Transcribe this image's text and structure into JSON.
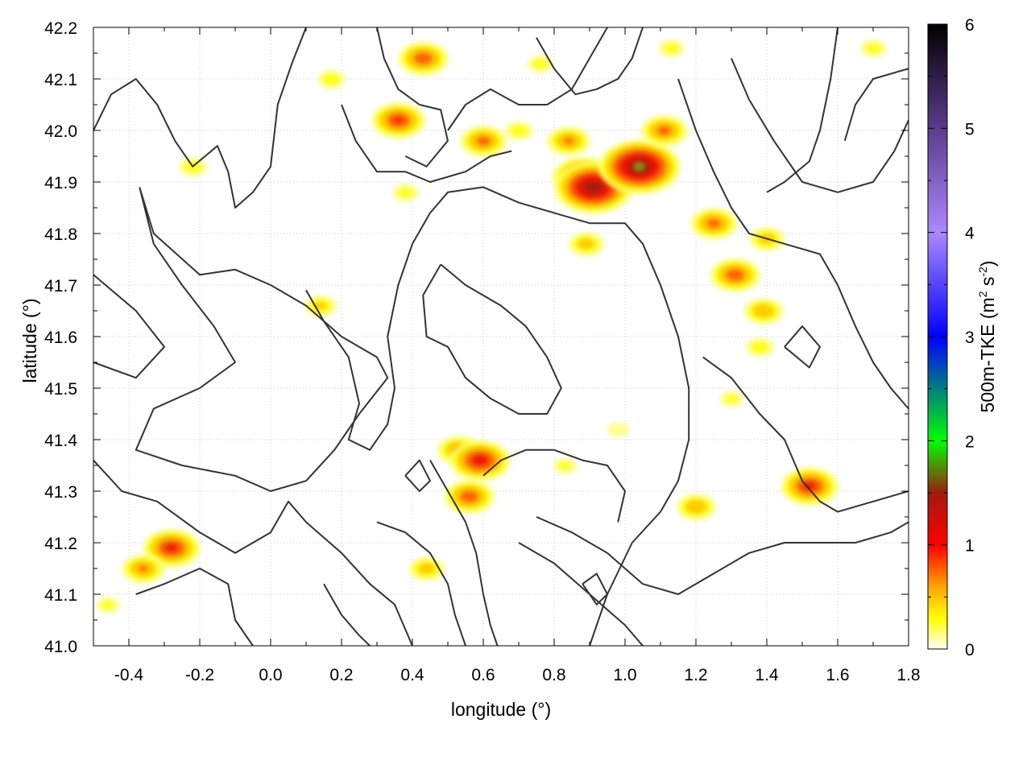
{
  "chart_data": {
    "type": "heatmap",
    "title": "",
    "xlabel": "longitude (°)",
    "ylabel": "latitude (°)",
    "colorbar_label": "500m-TKE (m² s⁻²)",
    "colorbar_label_parts": {
      "base": "500m-TKE (m",
      "sup1": "2",
      "mid": " s",
      "sup2": "-2",
      "end": ")"
    },
    "xlim": [
      -0.5,
      1.8
    ],
    "ylim": [
      41.0,
      42.2
    ],
    "zlim": [
      0,
      6
    ],
    "x_ticks": [
      -0.4,
      -0.2,
      0.0,
      0.2,
      0.4,
      0.6,
      0.8,
      1.0,
      1.2,
      1.4,
      1.6,
      1.8
    ],
    "x_tick_labels": [
      "-0.4",
      "-0.2",
      "0.0",
      "0.2",
      "0.4",
      "0.6",
      "0.8",
      "1.0",
      "1.2",
      "1.4",
      "1.6",
      "1.8"
    ],
    "y_ticks": [
      41.0,
      41.1,
      41.2,
      41.3,
      41.4,
      41.5,
      41.6,
      41.7,
      41.8,
      41.9,
      42.0,
      42.1,
      42.2
    ],
    "y_tick_labels": [
      "41.0",
      "41.1",
      "41.2",
      "41.3",
      "41.4",
      "41.5",
      "41.6",
      "41.7",
      "41.8",
      "41.9",
      "42.0",
      "42.1",
      "42.2"
    ],
    "colorbar_ticks": [
      0,
      1,
      2,
      3,
      4,
      5,
      6
    ],
    "colorbar_tick_labels": [
      "0",
      "1",
      "2",
      "3",
      "4",
      "5",
      "6"
    ],
    "colormap": [
      {
        "v": 0.0,
        "color": "#ffffff"
      },
      {
        "v": 0.3,
        "color": "#ffff00"
      },
      {
        "v": 0.6,
        "color": "#ffa500"
      },
      {
        "v": 1.0,
        "color": "#ff0000"
      },
      {
        "v": 1.5,
        "color": "#a01c0c"
      },
      {
        "v": 2.0,
        "color": "#00ff00"
      },
      {
        "v": 3.0,
        "color": "#0000ff"
      },
      {
        "v": 4.0,
        "color": "#aa88ff"
      },
      {
        "v": 5.0,
        "color": "#5a3c8c"
      },
      {
        "v": 6.0,
        "color": "#000000"
      }
    ],
    "grid": true,
    "contour_color": "#333333",
    "hotspots": [
      {
        "lon": 0.43,
        "lat": 42.14,
        "tke": 1.0
      },
      {
        "lon": 0.36,
        "lat": 42.02,
        "tke": 1.1
      },
      {
        "lon": 0.17,
        "lat": 42.1,
        "tke": 0.4
      },
      {
        "lon": 0.6,
        "lat": 41.98,
        "tke": 0.9
      },
      {
        "lon": 0.84,
        "lat": 41.98,
        "tke": 0.8
      },
      {
        "lon": 0.88,
        "lat": 41.91,
        "tke": 1.3
      },
      {
        "lon": 0.91,
        "lat": 41.89,
        "tke": 1.8
      },
      {
        "lon": 1.04,
        "lat": 41.93,
        "tke": 1.9
      },
      {
        "lon": 1.11,
        "lat": 42.0,
        "tke": 0.9
      },
      {
        "lon": 1.25,
        "lat": 41.82,
        "tke": 0.9
      },
      {
        "lon": 1.31,
        "lat": 41.72,
        "tke": 1.0
      },
      {
        "lon": 1.4,
        "lat": 41.79,
        "tke": 0.6
      },
      {
        "lon": 1.39,
        "lat": 41.65,
        "tke": 0.7
      },
      {
        "lon": 0.89,
        "lat": 41.78,
        "tke": 0.6
      },
      {
        "lon": -0.22,
        "lat": 41.93,
        "tke": 0.4
      },
      {
        "lon": 0.14,
        "lat": 41.66,
        "tke": 0.5
      },
      {
        "lon": 0.53,
        "lat": 41.38,
        "tke": 0.8
      },
      {
        "lon": 0.59,
        "lat": 41.36,
        "tke": 1.3
      },
      {
        "lon": 0.56,
        "lat": 41.29,
        "tke": 1.0
      },
      {
        "lon": 0.44,
        "lat": 41.15,
        "tke": 0.6
      },
      {
        "lon": -0.28,
        "lat": 41.19,
        "tke": 1.2
      },
      {
        "lon": -0.36,
        "lat": 41.15,
        "tke": 0.8
      },
      {
        "lon": 1.52,
        "lat": 41.31,
        "tke": 1.2
      },
      {
        "lon": 1.2,
        "lat": 41.27,
        "tke": 0.7
      },
      {
        "lon": 0.83,
        "lat": 41.35,
        "tke": 0.3
      },
      {
        "lon": 0.98,
        "lat": 41.42,
        "tke": 0.25
      },
      {
        "lon": 0.76,
        "lat": 42.13,
        "tke": 0.35
      },
      {
        "lon": 1.13,
        "lat": 42.16,
        "tke": 0.35
      },
      {
        "lon": 1.38,
        "lat": 41.58,
        "tke": 0.4
      },
      {
        "lon": 1.3,
        "lat": 41.48,
        "tke": 0.3
      },
      {
        "lon": -0.46,
        "lat": 41.08,
        "tke": 0.3
      },
      {
        "lon": 1.7,
        "lat": 42.16,
        "tke": 0.35
      },
      {
        "lon": 0.38,
        "lat": 41.88,
        "tke": 0.35
      },
      {
        "lon": 0.7,
        "lat": 42.0,
        "tke": 0.4
      }
    ],
    "contours": [
      [
        [
          -0.5,
          42.0
        ],
        [
          -0.45,
          42.07
        ],
        [
          -0.38,
          42.1
        ],
        [
          -0.32,
          42.05
        ],
        [
          -0.27,
          41.98
        ],
        [
          -0.22,
          41.93
        ],
        [
          -0.15,
          41.97
        ],
        [
          -0.12,
          41.92
        ],
        [
          -0.1,
          41.85
        ],
        [
          -0.05,
          41.88
        ],
        [
          0.0,
          41.93
        ],
        [
          0.02,
          42.05
        ],
        [
          0.06,
          42.13
        ],
        [
          0.1,
          42.2
        ]
      ],
      [
        [
          -0.37,
          41.89
        ],
        [
          -0.33,
          41.8
        ],
        [
          -0.2,
          41.72
        ],
        [
          -0.1,
          41.73
        ],
        [
          0.0,
          41.7
        ],
        [
          0.1,
          41.66
        ],
        [
          0.2,
          41.6
        ],
        [
          0.3,
          41.56
        ],
        [
          0.33,
          41.52
        ],
        [
          0.25,
          41.45
        ],
        [
          0.18,
          41.38
        ],
        [
          0.1,
          41.32
        ],
        [
          0.0,
          41.3
        ],
        [
          -0.1,
          41.33
        ],
        [
          -0.25,
          41.35
        ],
        [
          -0.38,
          41.38
        ],
        [
          -0.33,
          41.46
        ],
        [
          -0.2,
          41.5
        ],
        [
          -0.1,
          41.55
        ],
        [
          -0.16,
          41.62
        ],
        [
          -0.25,
          41.7
        ],
        [
          -0.33,
          41.78
        ],
        [
          -0.37,
          41.89
        ]
      ],
      [
        [
          -0.5,
          41.72
        ],
        [
          -0.38,
          41.65
        ],
        [
          -0.3,
          41.58
        ],
        [
          -0.38,
          41.52
        ],
        [
          -0.5,
          41.55
        ]
      ],
      [
        [
          -0.5,
          41.36
        ],
        [
          -0.42,
          41.3
        ],
        [
          -0.32,
          41.28
        ],
        [
          -0.2,
          41.22
        ],
        [
          -0.1,
          41.18
        ],
        [
          0.0,
          41.22
        ],
        [
          0.05,
          41.28
        ],
        [
          0.1,
          41.24
        ],
        [
          0.2,
          41.18
        ],
        [
          0.28,
          41.12
        ],
        [
          0.35,
          41.08
        ],
        [
          0.4,
          41.0
        ]
      ],
      [
        [
          0.1,
          41.69
        ],
        [
          0.15,
          41.63
        ],
        [
          0.22,
          41.56
        ],
        [
          0.25,
          41.47
        ],
        [
          0.22,
          41.4
        ],
        [
          0.28,
          41.38
        ],
        [
          0.33,
          41.43
        ],
        [
          0.35,
          41.5
        ],
        [
          0.33,
          41.6
        ],
        [
          0.36,
          41.7
        ],
        [
          0.4,
          41.78
        ],
        [
          0.45,
          41.84
        ],
        [
          0.5,
          41.88
        ],
        [
          0.6,
          41.89
        ],
        [
          0.7,
          41.86
        ],
        [
          0.8,
          41.84
        ],
        [
          0.9,
          41.82
        ],
        [
          1.0,
          41.82
        ],
        [
          1.05,
          41.78
        ],
        [
          1.1,
          41.7
        ],
        [
          1.15,
          41.6
        ],
        [
          1.18,
          41.5
        ],
        [
          1.18,
          41.4
        ],
        [
          1.15,
          41.32
        ],
        [
          1.1,
          41.26
        ],
        [
          1.02,
          41.2
        ],
        [
          0.95,
          41.1
        ],
        [
          0.9,
          41.0
        ]
      ],
      [
        [
          0.48,
          41.74
        ],
        [
          0.55,
          41.7
        ],
        [
          0.65,
          41.66
        ],
        [
          0.72,
          41.62
        ],
        [
          0.78,
          41.56
        ],
        [
          0.82,
          41.5
        ],
        [
          0.78,
          41.45
        ],
        [
          0.7,
          41.45
        ],
        [
          0.62,
          41.48
        ],
        [
          0.55,
          41.52
        ],
        [
          0.5,
          41.58
        ],
        [
          0.44,
          41.6
        ],
        [
          0.43,
          41.68
        ],
        [
          0.48,
          41.74
        ]
      ],
      [
        [
          0.5,
          42.0
        ],
        [
          0.55,
          42.05
        ],
        [
          0.62,
          42.08
        ],
        [
          0.7,
          42.05
        ],
        [
          0.78,
          42.05
        ],
        [
          0.85,
          42.08
        ],
        [
          0.9,
          42.14
        ],
        [
          0.95,
          42.2
        ]
      ],
      [
        [
          0.75,
          42.18
        ],
        [
          0.8,
          42.12
        ],
        [
          0.86,
          42.07
        ],
        [
          0.92,
          42.08
        ],
        [
          0.98,
          42.1
        ],
        [
          1.02,
          42.14
        ],
        [
          1.05,
          42.2
        ]
      ],
      [
        [
          0.3,
          42.2
        ],
        [
          0.32,
          42.14
        ],
        [
          0.36,
          42.08
        ],
        [
          0.42,
          42.05
        ],
        [
          0.48,
          42.04
        ],
        [
          0.5,
          41.98
        ],
        [
          0.44,
          41.93
        ],
        [
          0.38,
          41.95
        ]
      ],
      [
        [
          0.2,
          42.05
        ],
        [
          0.24,
          41.98
        ],
        [
          0.3,
          41.92
        ],
        [
          0.38,
          41.92
        ],
        [
          0.45,
          41.9
        ],
        [
          0.55,
          41.92
        ],
        [
          0.62,
          41.95
        ],
        [
          0.68,
          41.96
        ]
      ],
      [
        [
          1.15,
          42.1
        ],
        [
          1.2,
          42.0
        ],
        [
          1.25,
          41.92
        ],
        [
          1.3,
          41.85
        ],
        [
          1.35,
          41.8
        ],
        [
          1.45,
          41.78
        ],
        [
          1.55,
          41.76
        ],
        [
          1.6,
          41.7
        ],
        [
          1.65,
          41.62
        ],
        [
          1.7,
          41.55
        ],
        [
          1.75,
          41.5
        ],
        [
          1.8,
          41.46
        ]
      ],
      [
        [
          1.6,
          42.2
        ],
        [
          1.58,
          42.1
        ],
        [
          1.55,
          42.0
        ],
        [
          1.52,
          41.94
        ],
        [
          1.45,
          41.9
        ],
        [
          1.4,
          41.88
        ]
      ],
      [
        [
          1.3,
          42.14
        ],
        [
          1.35,
          42.06
        ],
        [
          1.42,
          41.98
        ],
        [
          1.5,
          41.9
        ],
        [
          1.6,
          41.88
        ],
        [
          1.7,
          41.9
        ],
        [
          1.76,
          41.96
        ],
        [
          1.8,
          42.02
        ]
      ],
      [
        [
          1.22,
          41.56
        ],
        [
          1.3,
          41.52
        ],
        [
          1.38,
          41.45
        ],
        [
          1.45,
          41.4
        ],
        [
          1.5,
          41.32
        ],
        [
          1.55,
          41.28
        ],
        [
          1.6,
          41.26
        ],
        [
          1.7,
          41.28
        ],
        [
          1.8,
          41.3
        ]
      ],
      [
        [
          0.75,
          41.25
        ],
        [
          0.85,
          41.22
        ],
        [
          0.95,
          41.18
        ],
        [
          1.05,
          41.12
        ],
        [
          1.15,
          41.1
        ],
        [
          1.25,
          41.14
        ],
        [
          1.35,
          41.18
        ],
        [
          1.45,
          41.2
        ],
        [
          1.55,
          41.2
        ],
        [
          1.65,
          41.2
        ],
        [
          1.75,
          41.22
        ],
        [
          1.8,
          41.24
        ]
      ],
      [
        [
          0.7,
          41.2
        ],
        [
          0.8,
          41.16
        ],
        [
          0.9,
          41.1
        ],
        [
          1.0,
          41.04
        ],
        [
          1.05,
          41.0
        ]
      ],
      [
        [
          0.45,
          41.36
        ],
        [
          0.5,
          41.3
        ],
        [
          0.55,
          41.24
        ],
        [
          0.58,
          41.18
        ],
        [
          0.6,
          41.1
        ],
        [
          0.62,
          41.04
        ],
        [
          0.64,
          41.0
        ]
      ],
      [
        [
          0.3,
          41.24
        ],
        [
          0.38,
          41.22
        ],
        [
          0.45,
          41.18
        ],
        [
          0.5,
          41.12
        ],
        [
          0.52,
          41.06
        ],
        [
          0.55,
          41.0
        ]
      ],
      [
        [
          0.6,
          41.33
        ],
        [
          0.65,
          41.36
        ],
        [
          0.72,
          41.38
        ],
        [
          0.8,
          41.38
        ],
        [
          0.88,
          41.36
        ],
        [
          0.95,
          41.35
        ],
        [
          1.0,
          41.3
        ],
        [
          0.98,
          41.24
        ]
      ],
      [
        [
          0.38,
          41.33
        ],
        [
          0.42,
          41.3
        ],
        [
          0.45,
          41.32
        ],
        [
          0.42,
          41.36
        ],
        [
          0.38,
          41.33
        ]
      ],
      [
        [
          0.88,
          41.12
        ],
        [
          0.92,
          41.08
        ],
        [
          0.95,
          41.1
        ],
        [
          0.92,
          41.14
        ],
        [
          0.88,
          41.12
        ]
      ],
      [
        [
          1.45,
          41.58
        ],
        [
          1.52,
          41.54
        ],
        [
          1.55,
          41.58
        ],
        [
          1.5,
          41.62
        ],
        [
          1.45,
          41.58
        ]
      ],
      [
        [
          -0.38,
          41.1
        ],
        [
          -0.3,
          41.12
        ],
        [
          -0.2,
          41.15
        ],
        [
          -0.12,
          41.12
        ],
        [
          -0.1,
          41.05
        ],
        [
          -0.05,
          41.0
        ]
      ],
      [
        [
          0.15,
          41.12
        ],
        [
          0.2,
          41.06
        ],
        [
          0.25,
          41.02
        ],
        [
          0.28,
          41.0
        ]
      ],
      [
        [
          1.8,
          42.12
        ],
        [
          1.7,
          42.1
        ],
        [
          1.65,
          42.05
        ],
        [
          1.62,
          41.98
        ]
      ]
    ]
  }
}
